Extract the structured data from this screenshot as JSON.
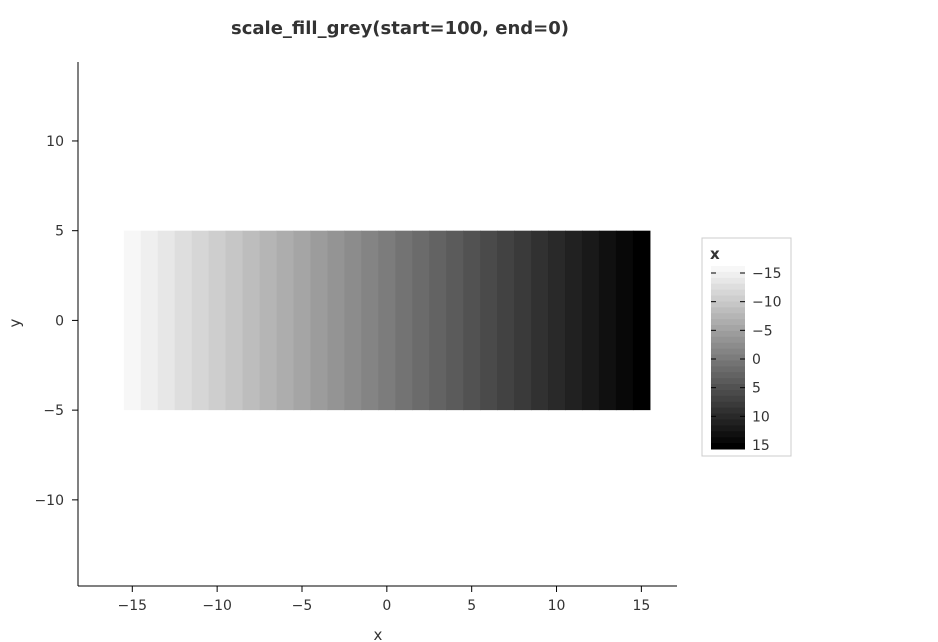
{
  "chart_data": {
    "type": "heatmap",
    "title": "scale_fill_grey(start=100, end=0)",
    "xlabel": "x",
    "ylabel": "y",
    "xlim": [
      -18.2,
      17.1
    ],
    "ylim": [
      -14.8,
      14.4
    ],
    "x_ticks": [
      -15,
      -10,
      -5,
      0,
      5,
      10,
      15
    ],
    "x_tick_labels": [
      "−15",
      "−10",
      "−5",
      "0",
      "5",
      "10",
      "15"
    ],
    "y_ticks": [
      -10,
      -5,
      0,
      5,
      10
    ],
    "y_tick_labels": [
      "−10",
      "−5",
      "0",
      "5",
      "10"
    ],
    "x": [
      -15,
      -14,
      -13,
      -12,
      -11,
      -10,
      -9,
      -8,
      -7,
      -6,
      -5,
      -4,
      -3,
      -2,
      -1,
      0,
      1,
      2,
      3,
      4,
      5,
      6,
      7,
      8,
      9,
      10,
      11,
      12,
      13,
      14,
      15
    ],
    "y_range": [
      -5,
      5
    ],
    "fill_scale": {
      "start_percent_grey": 100,
      "end_percent_grey": 0,
      "domain": [
        -15,
        15
      ]
    },
    "legend": {
      "title": "x",
      "placement": "right",
      "tick_values": [
        -15,
        -10,
        -5,
        0,
        5,
        10,
        15
      ],
      "tick_labels": [
        "−15",
        "−10",
        "−5",
        "0",
        "5",
        "10",
        "15"
      ]
    },
    "grid": false
  }
}
